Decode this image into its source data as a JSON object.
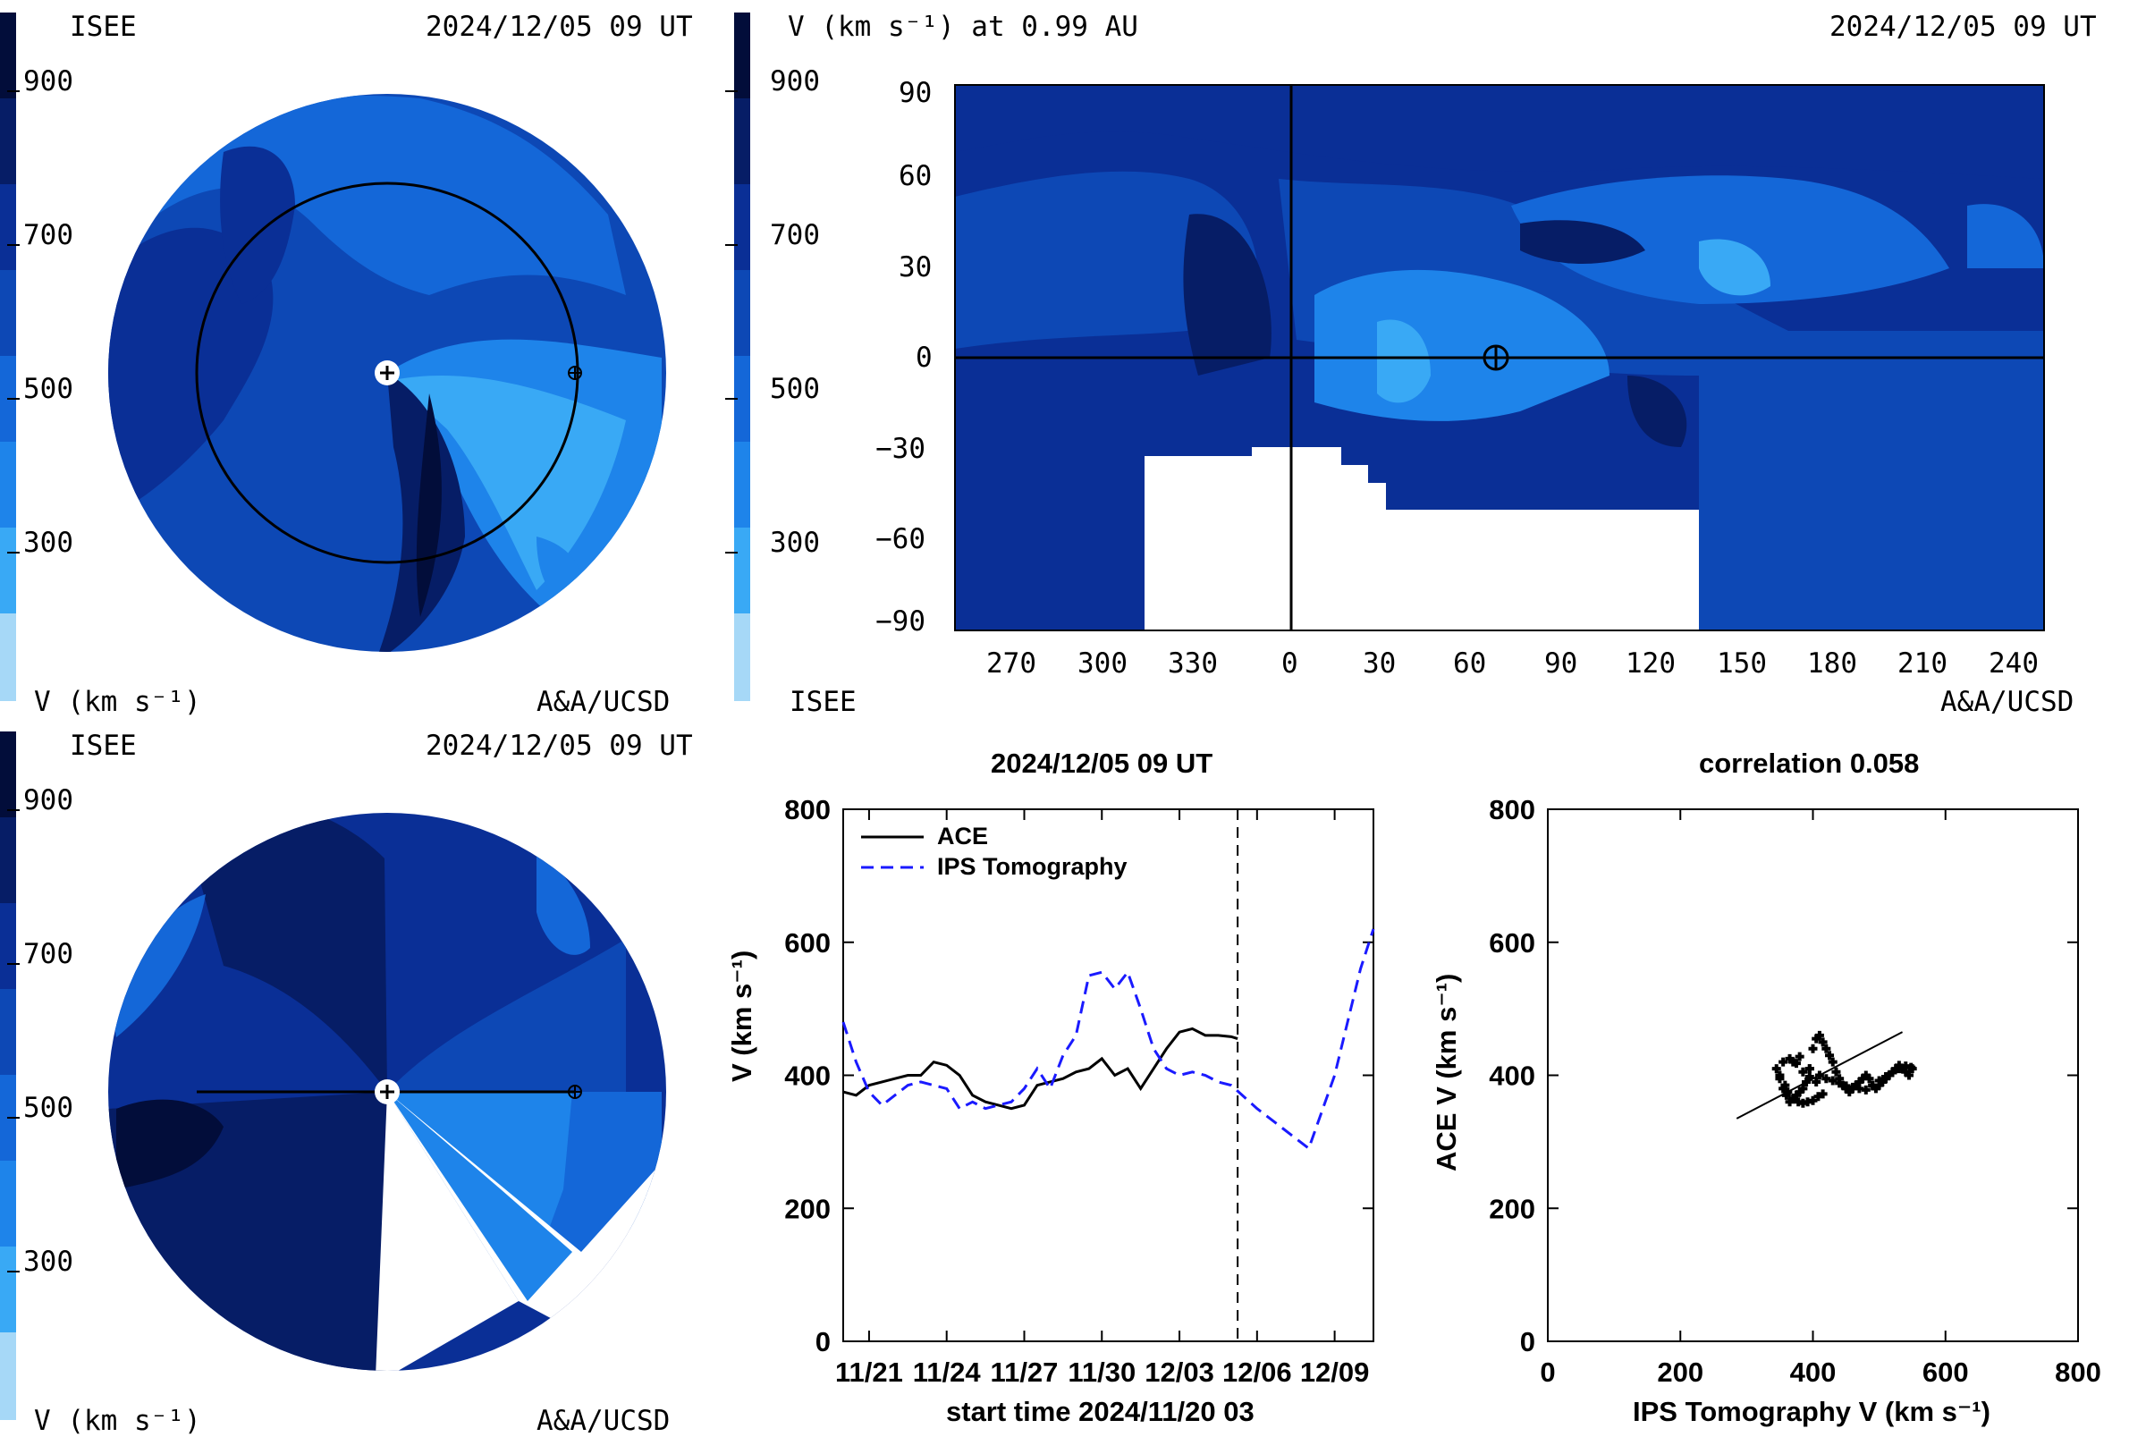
{
  "palette": [
    "#a6d8f7",
    "#39a9f5",
    "#1e84ea",
    "#1467d8",
    "#0d48b5",
    "#0a2f96",
    "#061d66",
    "#020d3a"
  ],
  "panel_ecliptic": {
    "org": "ISEE",
    "datetime": "2024/12/05 09 UT",
    "colorbar_ticks": [
      "900",
      "700",
      "500",
      "300"
    ],
    "unit_label": "V (km s⁻¹)",
    "credit": "A&A/UCSD",
    "icons": [
      "sun-icon",
      "earth-icon"
    ]
  },
  "panel_meridional": {
    "org": "ISEE",
    "datetime": "2024/12/05 09 UT",
    "colorbar_ticks": [
      "900",
      "700",
      "500",
      "300"
    ],
    "unit_label": "V (km s⁻¹)",
    "credit": "A&A/UCSD"
  },
  "panel_synoptic": {
    "title": "V (km s⁻¹) at 0.99 AU",
    "datetime": "2024/12/05 09 UT",
    "colorbar_ticks": [
      "900",
      "700",
      "500",
      "300"
    ],
    "org": "ISEE",
    "credit": "A&A/UCSD",
    "y_ticks": [
      "90",
      "60",
      "30",
      "0",
      "−30",
      "−60",
      "−90"
    ],
    "x_ticks": [
      "270",
      "300",
      "330",
      "0",
      "30",
      "60",
      "90",
      "120",
      "150",
      "180",
      "210",
      "240"
    ]
  },
  "chart_data": [
    {
      "type": "line",
      "title": "2024/12/05 09 UT",
      "xlabel": "start time 2024/11/20 03",
      "ylabel": "V (km s⁻¹)",
      "x_ticks": [
        "11/21",
        "11/24",
        "11/27",
        "11/30",
        "12/03",
        "12/06",
        "12/09"
      ],
      "y_ticks": [
        "0",
        "200",
        "400",
        "600",
        "800"
      ],
      "ylim": [
        0,
        800
      ],
      "xlim_days": [
        0,
        20.5
      ],
      "current_time_day": 15.25,
      "legend_position": "top-left",
      "series": [
        {
          "name": "ACE",
          "color": "#000000",
          "style": "solid",
          "x": [
            0,
            0.5,
            1,
            1.5,
            2,
            2.5,
            3,
            3.5,
            4,
            4.5,
            5,
            5.5,
            6,
            6.5,
            7,
            7.5,
            8,
            8.5,
            9,
            9.5,
            10,
            10.5,
            11,
            11.5,
            12,
            12.5,
            13,
            13.5,
            14,
            14.5,
            15,
            15.25
          ],
          "values": [
            375,
            370,
            385,
            390,
            395,
            400,
            400,
            420,
            415,
            400,
            370,
            360,
            355,
            350,
            355,
            385,
            390,
            395,
            405,
            410,
            425,
            400,
            410,
            380,
            410,
            440,
            465,
            470,
            460,
            460,
            458,
            455
          ]
        },
        {
          "name": "IPS Tomography",
          "color": "#1a1aff",
          "style": "dashed",
          "x": [
            0,
            0.5,
            1,
            1.5,
            2,
            2.5,
            3,
            3.5,
            4,
            4.5,
            5,
            5.5,
            6,
            6.5,
            7,
            7.5,
            8,
            8.5,
            9,
            9.5,
            10,
            10.5,
            11,
            11.5,
            12,
            12.5,
            13,
            13.5,
            14,
            14.5,
            15,
            16,
            17,
            18,
            19,
            20,
            20.5
          ],
          "values": [
            480,
            420,
            375,
            355,
            370,
            385,
            390,
            385,
            380,
            350,
            360,
            350,
            355,
            360,
            380,
            410,
            380,
            430,
            460,
            550,
            555,
            530,
            555,
            500,
            440,
            410,
            400,
            405,
            400,
            390,
            385,
            350,
            320,
            290,
            400,
            560,
            620
          ]
        }
      ]
    },
    {
      "type": "scatter",
      "title": "correlation 0.058",
      "xlabel": "IPS Tomography V (km s⁻¹)",
      "ylabel": "ACE V (km s⁻¹)",
      "x_ticks": [
        "0",
        "200",
        "400",
        "600",
        "800"
      ],
      "y_ticks": [
        "0",
        "200",
        "400",
        "600",
        "800"
      ],
      "xlim": [
        0,
        800
      ],
      "ylim": [
        0,
        800
      ],
      "x": [
        345,
        350,
        355,
        360,
        365,
        370,
        375,
        380,
        385,
        390,
        395,
        400,
        405,
        410,
        415,
        420,
        425,
        430,
        435,
        440,
        445,
        450,
        455,
        460,
        465,
        470,
        475,
        480,
        485,
        490,
        495,
        500,
        505,
        510,
        515,
        520,
        525,
        530,
        535,
        540,
        545,
        550,
        350,
        358,
        362,
        370,
        378,
        385,
        392,
        400,
        408,
        415,
        355,
        365,
        375,
        385,
        395,
        405,
        370,
        380,
        395,
        410,
        420,
        430,
        440,
        450,
        460,
        470,
        480,
        490,
        500,
        510,
        520,
        530,
        540,
        548
      ],
      "values": [
        410,
        395,
        380,
        370,
        360,
        365,
        370,
        375,
        380,
        390,
        410,
        440,
        455,
        460,
        450,
        440,
        430,
        420,
        405,
        395,
        385,
        380,
        375,
        380,
        385,
        390,
        395,
        400,
        395,
        385,
        380,
        385,
        390,
        395,
        400,
        405,
        410,
        415,
        410,
        405,
        400,
        410,
        400,
        385,
        375,
        365,
        360,
        358,
        360,
        362,
        368,
        372,
        420,
        425,
        418,
        405,
        398,
        390,
        420,
        428,
        410,
        400,
        395,
        392,
        388,
        384,
        382,
        380,
        378,
        384,
        392,
        398,
        404,
        410,
        414,
        412
      ],
      "fit_line": {
        "x": [
          285,
          535
        ],
        "y": [
          335,
          465
        ]
      }
    }
  ]
}
